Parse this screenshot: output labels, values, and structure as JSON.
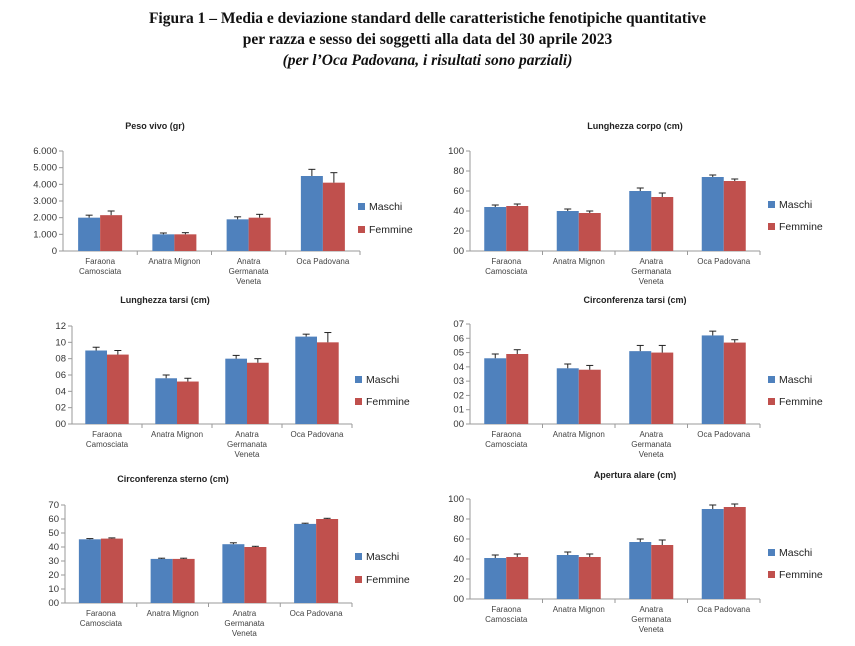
{
  "header": {
    "line1": "Figura 1 – Media e deviazione standard delle caratteristiche fenotipiche quantitative",
    "line2": "per razza e sesso dei soggetti alla data del 30 aprile 2023",
    "line3": "(per l’Oca Padovana, i risultati sono parziali)"
  },
  "colors": {
    "maschi": "#4F81BD",
    "femmine": "#C0504D",
    "error_bar": "#222222",
    "axis": "#9a9a9a"
  },
  "chart_data": [
    {
      "type": "bar",
      "title": "Peso vivo (gr)",
      "categories": [
        [
          "Faraona",
          "Camosciata"
        ],
        [
          "Anatra Mignon"
        ],
        [
          "Anatra",
          "Germanata",
          "Veneta"
        ],
        [
          "Oca Padovana"
        ]
      ],
      "series": [
        {
          "name": "Maschi",
          "values": [
            2000,
            1000,
            1900,
            4500
          ],
          "sd": [
            150,
            80,
            150,
            400
          ]
        },
        {
          "name": "Femmine",
          "values": [
            2150,
            1000,
            2000,
            4100
          ],
          "sd": [
            250,
            100,
            200,
            600
          ]
        }
      ],
      "ylim": [
        0,
        6000
      ],
      "ticks": [
        "0",
        "1.000",
        "2.000",
        "3.000",
        "4.000",
        "5.000",
        "6.000"
      ],
      "legend_position": "right"
    },
    {
      "type": "bar",
      "title": "Lunghezza corpo (cm)",
      "categories": [
        [
          "Faraona",
          "Camosciata"
        ],
        [
          "Anatra Mignon"
        ],
        [
          "Anatra",
          "Germanata",
          "Veneta"
        ],
        [
          "Oca Padovana"
        ]
      ],
      "series": [
        {
          "name": "Maschi",
          "values": [
            44,
            40,
            60,
            74
          ],
          "sd": [
            2,
            2,
            3,
            2
          ]
        },
        {
          "name": "Femmine",
          "values": [
            45,
            38,
            54,
            70
          ],
          "sd": [
            2,
            2,
            4,
            2
          ]
        }
      ],
      "ylim": [
        0,
        100
      ],
      "ticks": [
        "00",
        "20",
        "40",
        "60",
        "80",
        "100"
      ],
      "legend_position": "right"
    },
    {
      "type": "bar",
      "title": "Lunghezza tarsi (cm)",
      "categories": [
        [
          "Faraona",
          "Camosciata"
        ],
        [
          "Anatra Mignon"
        ],
        [
          "Anatra",
          "Germanata",
          "Veneta"
        ],
        [
          "Oca Padovana"
        ]
      ],
      "series": [
        {
          "name": "Maschi",
          "values": [
            9.0,
            5.6,
            8.0,
            10.7
          ],
          "sd": [
            0.4,
            0.4,
            0.4,
            0.3
          ]
        },
        {
          "name": "Femmine",
          "values": [
            8.5,
            5.2,
            7.5,
            10.0
          ],
          "sd": [
            0.5,
            0.4,
            0.5,
            1.2
          ]
        }
      ],
      "ylim": [
        0,
        12
      ],
      "ticks": [
        "00",
        "02",
        "04",
        "06",
        "08",
        "10",
        "12"
      ],
      "legend_position": "right"
    },
    {
      "type": "bar",
      "title": "Circonferenza tarsi (cm)",
      "categories": [
        [
          "Faraona",
          "Camosciata"
        ],
        [
          "Anatra Mignon"
        ],
        [
          "Anatra",
          "Germanata",
          "Veneta"
        ],
        [
          "Oca Padovana"
        ]
      ],
      "series": [
        {
          "name": "Maschi",
          "values": [
            4.6,
            3.9,
            5.1,
            6.2
          ],
          "sd": [
            0.3,
            0.3,
            0.4,
            0.3
          ]
        },
        {
          "name": "Femmine",
          "values": [
            4.9,
            3.8,
            5.0,
            5.7
          ],
          "sd": [
            0.3,
            0.3,
            0.5,
            0.2
          ]
        }
      ],
      "ylim": [
        0,
        7
      ],
      "ticks": [
        "00",
        "01",
        "02",
        "03",
        "04",
        "05",
        "06",
        "07"
      ],
      "legend_position": "right"
    },
    {
      "type": "bar",
      "title": "Circonferenza sterno (cm)",
      "categories": [
        [
          "Faraona",
          "Camosciata"
        ],
        [
          "Anatra Mignon"
        ],
        [
          "Anatra",
          "Germanata",
          "Veneta"
        ],
        [
          "Oca Padovana"
        ]
      ],
      "series": [
        {
          "name": "Maschi",
          "values": [
            45.5,
            31.5,
            42,
            56.5
          ],
          "sd": [
            0.5,
            0.5,
            1,
            0.5
          ]
        },
        {
          "name": "Femmine",
          "values": [
            46,
            31.5,
            40,
            60
          ],
          "sd": [
            0.5,
            0.5,
            0.5,
            0.5
          ]
        }
      ],
      "ylim": [
        0,
        70
      ],
      "ticks": [
        "00",
        "10",
        "20",
        "30",
        "40",
        "50",
        "60",
        "70"
      ],
      "legend_position": "right"
    },
    {
      "type": "bar",
      "title": "Apertura alare (cm)",
      "categories": [
        [
          "Faraona",
          "Camosciata"
        ],
        [
          "Anatra Mignon"
        ],
        [
          "Anatra",
          "Germanata",
          "Veneta"
        ],
        [
          "Oca Padovana"
        ]
      ],
      "series": [
        {
          "name": "Maschi",
          "values": [
            41,
            44,
            57,
            90
          ],
          "sd": [
            3,
            3,
            3,
            4
          ]
        },
        {
          "name": "Femmine",
          "values": [
            42,
            42,
            54,
            92
          ],
          "sd": [
            3,
            3,
            5,
            3
          ]
        }
      ],
      "ylim": [
        0,
        100
      ],
      "ticks": [
        "00",
        "20",
        "40",
        "60",
        "80",
        "100"
      ],
      "legend_position": "right"
    }
  ]
}
